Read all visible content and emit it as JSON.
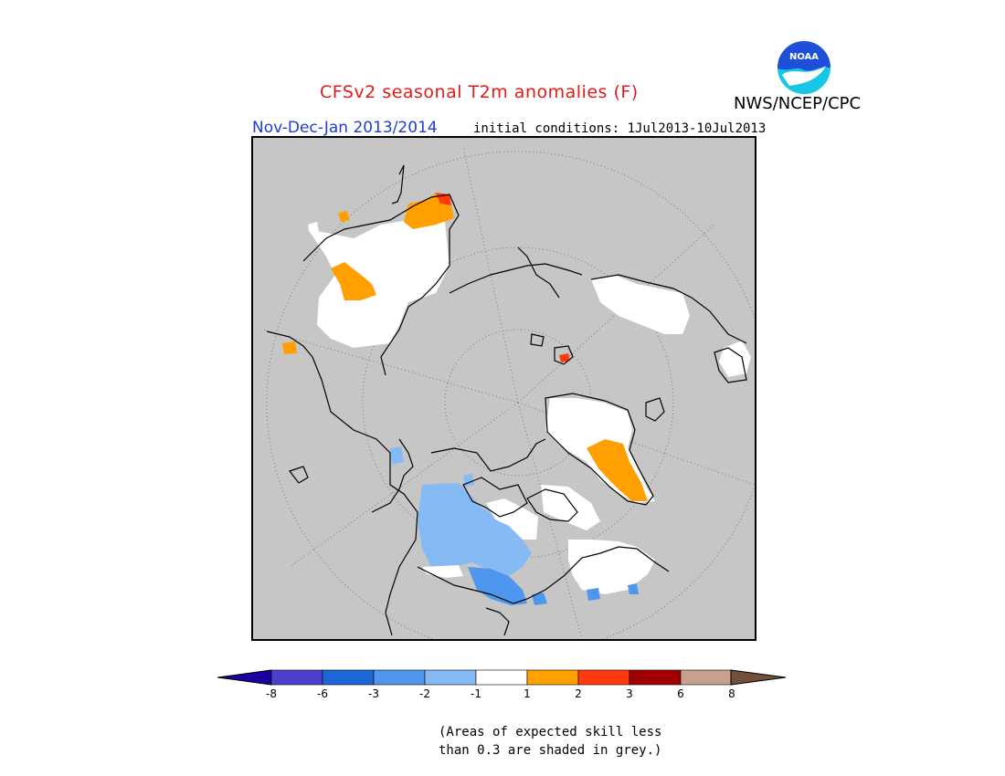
{
  "header": {
    "title": "CFSv2 seasonal T2m anomalies (F)",
    "agency": "NWS/NCEP/CPC",
    "season": "Nov-Dec-Jan 2013/2014",
    "initial_conditions": "initial conditions: 1Jul2013-10Jul2013"
  },
  "logo": {
    "text": "NOAA",
    "colors": {
      "sky": "#1d4fd8",
      "wave": "#19c6e8",
      "bird": "#ffffff"
    }
  },
  "map": {
    "background_color": "#c6c6c6",
    "coastline_color": "#000000",
    "grid": "dotted lat/lon circles"
  },
  "legend": {
    "labels": [
      "-8",
      "-6",
      "-3",
      "-2",
      "-1",
      "1",
      "2",
      "3",
      "6",
      "8"
    ],
    "colors": [
      "#1c00a0",
      "#4b3fcc",
      "#1c66d6",
      "#4f96ee",
      "#86baf5",
      "#ffffff",
      "#ffa000",
      "#ff3a10",
      "#a00000",
      "#c8a090",
      "#73503c"
    ]
  },
  "note": {
    "line1": "(Areas of expected skill less",
    "line2": "than 0.3 are shaded in grey.)"
  }
}
